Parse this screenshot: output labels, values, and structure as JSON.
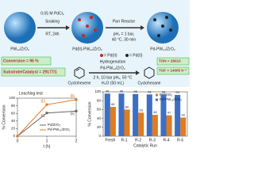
{
  "scheme": {
    "support": "PW₁₂/ZrO₂",
    "step1_reagent": "0.05 M PdCl₂",
    "step1_action": "Soaking",
    "step1_conditions": "RT, 24h",
    "intermediate": "Pd(II)-PW₁₂/ZrO₂",
    "step2_action": "Parr Reactor",
    "step2_pressure": "pH₂ = 1 bar,",
    "step2_conditions": "40 °C, 30 min",
    "product": "Pd-PW₁₂/ZrO₂",
    "legend_pd2": "= Pd(II)",
    "legend_pd0": "= Pd(0)",
    "conversion": "Conversion = 96 %",
    "ratio": "Substrate/Catalyst = 29177/1",
    "reaction": "Hydrogenation",
    "catalyst": "Pd-PW₁₂/ZrO₂",
    "reaction_conditions": "2 h, 10 bar pH₂, 50 °C",
    "solvent": "H₂O (50 mL)",
    "substrate": "Cyclohexene",
    "result": "Cyclohexane",
    "ton": "TON = 28010",
    "tof": "TOF = 14005 h⁻¹"
  },
  "chart_data": [
    {
      "type": "line",
      "title": "Leaching test",
      "x_label": "t (h)",
      "y_label": "% Conversion",
      "x": [
        0,
        1,
        2
      ],
      "xlim": [
        0,
        2
      ],
      "xticks": [
        0,
        1,
        2
      ],
      "ylim": [
        0,
        100
      ],
      "yticks": [
        0,
        20,
        40,
        60,
        80,
        100
      ],
      "series": [
        {
          "name": "Pd/ZrO₂",
          "color": "#666666",
          "values": [
            0,
            61,
            66
          ]
        },
        {
          "name": "Pd-PW₁₂/ZrO₂",
          "color": "#e07b20",
          "values": [
            0,
            83,
            96
          ]
        }
      ]
    },
    {
      "type": "bar",
      "x_label": "Catalytic Run",
      "y_label": "% Conversion",
      "categories": [
        "Fresh",
        "R-1",
        "R-2",
        "R-3",
        "R-4",
        "R-5"
      ],
      "ylim": [
        0,
        100
      ],
      "yticks": [
        0,
        20,
        40,
        60,
        80,
        100
      ],
      "series": [
        {
          "name": "Pd/ZrO₂",
          "color": "#e07b20",
          "values": [
            66,
            60,
            53,
            48,
            47,
            42
          ]
        },
        {
          "name": "Pd-PW₁₂/ZrO₂",
          "color": "#3c6fc4",
          "values": [
            96,
            96,
            95,
            94,
            94,
            93
          ]
        }
      ]
    }
  ]
}
